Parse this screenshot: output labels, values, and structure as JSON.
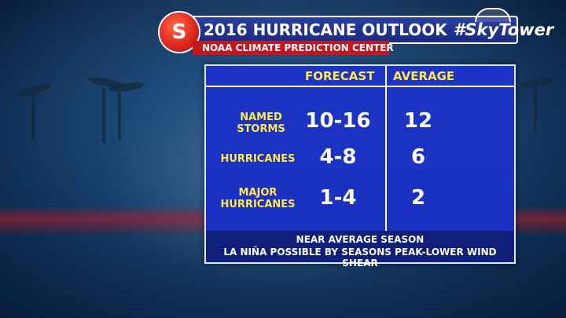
{
  "header": {
    "title": "2016 HURRICANE OUTLOOK",
    "hashtag": "#SkyTower",
    "subtitle": "NOAA CLIMATE PREDICTION CENTER"
  },
  "table": {
    "columns": [
      "FORECAST",
      "AVERAGE"
    ],
    "rows": [
      {
        "label_line1": "NAMED",
        "label_line2": "STORMS",
        "forecast": "10-16",
        "average": "12"
      },
      {
        "label_line1": "HURRICANES",
        "label_line2": "",
        "forecast": "4-8",
        "average": "6"
      },
      {
        "label_line1": "MAJOR",
        "label_line2": "HURRICANES",
        "forecast": "1-4",
        "average": "2"
      }
    ]
  },
  "footer": {
    "line1": "NEAR AVERAGE SEASON",
    "line2": "LA NIÑA POSSIBLE BY SEASONS PEAK-LOWER WIND SHEAR"
  },
  "colors": {
    "panel": "#1c34c6",
    "label_yellow": "#ffe84a",
    "accent_red": "#c8141c",
    "title_bar": "#1a2a84"
  },
  "icons": [
    "storm-logo-icon",
    "dome-icon"
  ]
}
